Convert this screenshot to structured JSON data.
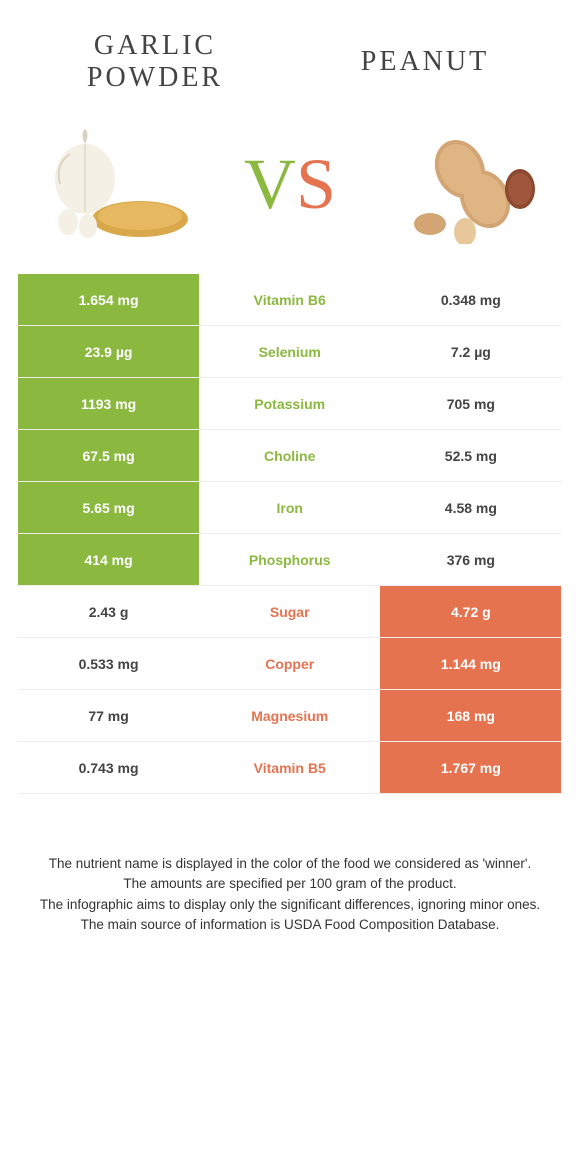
{
  "colors": {
    "left_winner_bg": "#8bb83f",
    "right_winner_bg": "#e67350",
    "loser_bg": "#ffffff",
    "white_text": "#ffffff",
    "row_border": "#eeeeee"
  },
  "header": {
    "left_title": "Garlic powder",
    "right_title": "Peanut"
  },
  "vs": {
    "v": "V",
    "s": "S"
  },
  "nutrients": [
    {
      "name": "Vitamin B6",
      "left": "1.654 mg",
      "right": "0.348 mg",
      "winner": "left"
    },
    {
      "name": "Selenium",
      "left": "23.9 µg",
      "right": "7.2 µg",
      "winner": "left"
    },
    {
      "name": "Potassium",
      "left": "1193 mg",
      "right": "705 mg",
      "winner": "left"
    },
    {
      "name": "Choline",
      "left": "67.5 mg",
      "right": "52.5 mg",
      "winner": "left"
    },
    {
      "name": "Iron",
      "left": "5.65 mg",
      "right": "4.58 mg",
      "winner": "left"
    },
    {
      "name": "Phosphorus",
      "left": "414 mg",
      "right": "376 mg",
      "winner": "left"
    },
    {
      "name": "Sugar",
      "left": "2.43 g",
      "right": "4.72 g",
      "winner": "right"
    },
    {
      "name": "Copper",
      "left": "0.533 mg",
      "right": "1.144 mg",
      "winner": "right"
    },
    {
      "name": "Magnesium",
      "left": "77 mg",
      "right": "168 mg",
      "winner": "right"
    },
    {
      "name": "Vitamin B5",
      "left": "0.743 mg",
      "right": "1.767 mg",
      "winner": "right"
    }
  ],
  "footnotes": [
    "The nutrient name is displayed in the color of the food we considered as 'winner'.",
    "The amounts are specified per 100 gram of the product.",
    "The infographic aims to display only the significant differences, ignoring minor ones.",
    "The main source of information is USDA Food Composition Database."
  ]
}
